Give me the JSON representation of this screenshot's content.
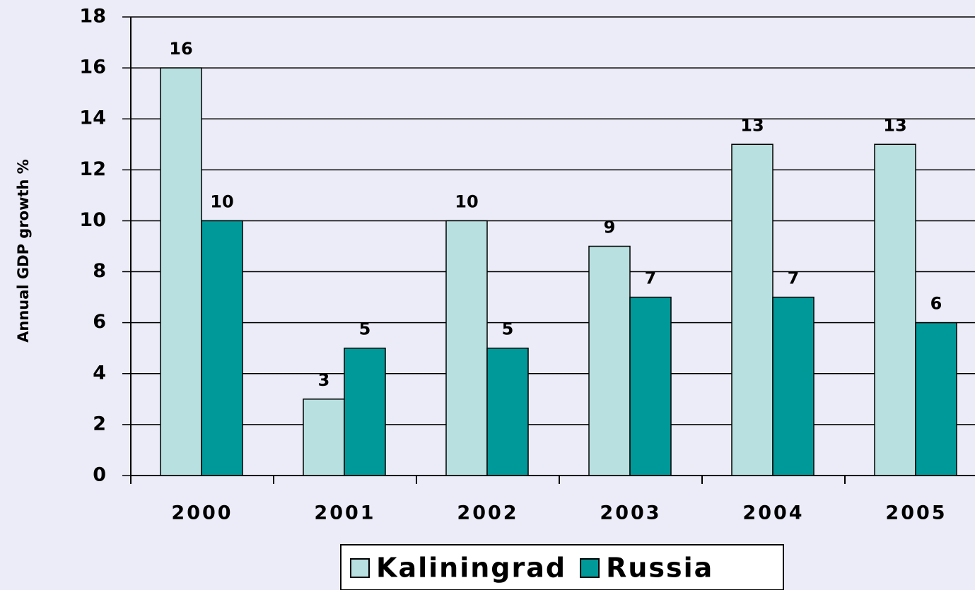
{
  "chart_data": {
    "type": "bar",
    "y_label": "Annual GDP growth %",
    "categories": [
      "2000",
      "2001",
      "2002",
      "2003",
      "2004",
      "2005"
    ],
    "series": [
      {
        "name": "Kaliningrad",
        "color": "#b8e0e0",
        "values": [
          16,
          3,
          10,
          9,
          13,
          13
        ]
      },
      {
        "name": "Russia",
        "color": "#009999",
        "values": [
          10,
          5,
          5,
          7,
          7,
          6
        ]
      }
    ],
    "ylim": [
      0,
      18
    ],
    "yticks": [
      0,
      2,
      4,
      6,
      8,
      10,
      12,
      14,
      16,
      18
    ],
    "grid": true,
    "legend": "bottom"
  }
}
